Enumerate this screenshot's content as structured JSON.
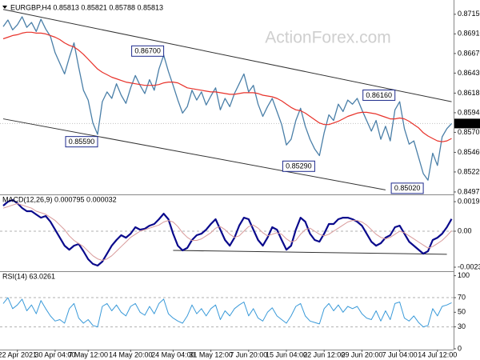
{
  "chart_data": {
    "type": "stock",
    "watermark": "ActionForex.com",
    "categories": [
      null,
      null,
      null,
      "22 Apr 2021",
      null,
      null,
      null,
      null,
      null,
      null,
      null,
      "30 Apr 04:00",
      null,
      null,
      null,
      null,
      null,
      null,
      "7 May 12:00",
      null,
      null,
      null,
      null,
      null,
      null,
      null,
      null,
      "14 May 20:00",
      null,
      null,
      null,
      null,
      null,
      null,
      null,
      null,
      "24 May 04:00",
      null,
      null,
      null,
      null,
      null,
      null,
      null,
      "31 May 12:00",
      null,
      null,
      null,
      null,
      null,
      null,
      null,
      "7 Jun 20:00",
      null,
      null,
      null,
      null,
      null,
      null,
      null,
      "15 Jun 04:00",
      null,
      null,
      null,
      null,
      null,
      null,
      null,
      "22 Jun 12:00",
      null,
      null,
      null,
      null,
      null,
      null,
      null,
      "29 Jun 20:00",
      null,
      null,
      null,
      null,
      null,
      null,
      null,
      "7 Jul 04:00",
      null,
      null,
      null,
      null,
      null,
      null,
      null,
      "14 Jul 12:00",
      null,
      null,
      null
    ],
    "panels": [
      {
        "type": "line",
        "title": "EURGBP,H4 0.85813 0.85821 0.85788 0.85813",
        "ylim": [
          0.84955,
          0.87276
        ],
        "yticks": [
          {
            "value": 0.8715,
            "label": "0.87150"
          },
          {
            "value": 0.8691,
            "label": "0.86910"
          },
          {
            "value": 0.8667,
            "label": "0.86670"
          },
          {
            "value": 0.8643,
            "label": "0.86430"
          },
          0.86185,
          0.85945,
          0.85705,
          {
            "value": 0.8546,
            "label": "0.85460"
          },
          {
            "value": 0.8522,
            "label": "0.85220"
          },
          0.84975
        ],
        "last_price": 0.85813,
        "series": [
          {
            "color": "#4a7fa8",
            "width": 1.3,
            "values": [
              0.87,
              0.8708,
              0.8696,
              0.8702,
              0.8712,
              0.8699,
              0.8705,
              0.8694,
              0.8709,
              0.8697,
              0.8688,
              0.8668,
              0.8655,
              0.8642,
              0.8662,
              0.868,
              0.865,
              0.8622,
              0.861,
              0.8582,
              0.8568,
              0.8608,
              0.862,
              0.8612,
              0.863,
              0.8616,
              0.8606,
              0.8625,
              0.864,
              0.8628,
              0.8618,
              0.8635,
              0.8622,
              0.8648,
              0.8665,
              0.8645,
              0.8628,
              0.861,
              0.8594,
              0.8602,
              0.8622,
              0.861,
              0.862,
              0.8604,
              0.8615,
              0.8625,
              0.8598,
              0.8612,
              0.8602,
              0.8618,
              0.863,
              0.8642,
              0.862,
              0.8628,
              0.8605,
              0.859,
              0.8602,
              0.8612,
              0.8596,
              0.858,
              0.8555,
              0.8562,
              0.8585,
              0.86,
              0.8578,
              0.8562,
              0.855,
              0.8542,
              0.857,
              0.8592,
              0.8585,
              0.8605,
              0.8596,
              0.861,
              0.8605,
              0.8612,
              0.8598,
              0.8585,
              0.8572,
              0.8585,
              0.8562,
              0.8578,
              0.856,
              0.8598,
              0.8608,
              0.8575,
              0.8556,
              0.856,
              0.854,
              0.852,
              0.8512,
              0.8545,
              0.853,
              0.8565,
              0.8575,
              0.85813
            ]
          },
          {
            "color": "#e8322a",
            "width": 1.2,
            "values": [
              0.8685,
              0.8687,
              0.8689,
              0.869,
              0.8692,
              0.8693,
              0.8693,
              0.8692,
              0.8692,
              0.8691,
              0.8689,
              0.8687,
              0.8684,
              0.868,
              0.8677,
              0.8675,
              0.8671,
              0.8666,
              0.866,
              0.8654,
              0.8648,
              0.8644,
              0.8641,
              0.8638,
              0.8636,
              0.8634,
              0.8632,
              0.8631,
              0.863,
              0.8629,
              0.8628,
              0.8628,
              0.8628,
              0.8629,
              0.8631,
              0.8632,
              0.8632,
              0.8631,
              0.8628,
              0.8625,
              0.8624,
              0.8623,
              0.8622,
              0.8621,
              0.862,
              0.862,
              0.8619,
              0.8618,
              0.8617,
              0.8617,
              0.8618,
              0.8619,
              0.8619,
              0.8619,
              0.8618,
              0.8616,
              0.8615,
              0.8614,
              0.8612,
              0.8609,
              0.8605,
              0.8601,
              0.8598,
              0.8597,
              0.8594,
              0.859,
              0.8586,
              0.8582,
              0.858,
              0.858,
              0.8582,
              0.8584,
              0.8587,
              0.859,
              0.8592,
              0.8594,
              0.8595,
              0.8595,
              0.8594,
              0.8593,
              0.8591,
              0.8589,
              0.8587,
              0.8587,
              0.8588,
              0.8587,
              0.8584,
              0.858,
              0.8576,
              0.857,
              0.8566,
              0.8563,
              0.856,
              0.8559,
              0.856,
              0.8563
            ]
          }
        ],
        "trendlines": [
          {
            "color": "#333333",
            "x": [
              0,
              95
            ],
            "y": [
              0.8721,
              0.8608
            ]
          },
          {
            "color": "#333333",
            "x": [
              0,
              81
            ],
            "y": [
              0.8587,
              0.85
            ]
          }
        ],
        "annotations": [
          {
            "x": 34,
            "value": 0.867,
            "label": "0.86700"
          },
          {
            "x": 20,
            "value": 0.8559,
            "label": "0.85590"
          },
          {
            "x": 66,
            "value": 0.8529,
            "label": "0.85290"
          },
          {
            "x": 83,
            "value": 0.8616,
            "label": "0.86160"
          },
          {
            "x": 89,
            "value": 0.8502,
            "label": "0.85020"
          }
        ]
      },
      {
        "type": "line",
        "title": "MACD(12,26,9) 0.000795 0.000032",
        "ylim": [
          -0.00255,
          0.00229
        ],
        "yticks": [
          0.001922,
          {
            "value": 0,
            "label": "0.00"
          },
          -0.002342
        ],
        "levels": [
          0
        ],
        "series": [
          {
            "color": "#0a0a8c",
            "width": 2.2,
            "values": [
              0.00166,
              0.00192,
              0.00203,
              0.00182,
              0.00151,
              0.0013,
              0.0013,
              0.00109,
              0.00088,
              0.00099,
              0.00062,
              0.0001,
              -0.00042,
              -0.00094,
              -0.0012,
              -0.00094,
              -0.00083,
              -0.0013,
              -0.00182,
              -0.00213,
              -0.00224,
              -0.00198,
              -0.00146,
              -0.00094,
              -0.00057,
              -0.00026,
              -0.00042,
              -0.00016,
              0.00026,
              0.0001,
              0.00016,
              0.00036,
              0.00047,
              0.00078,
              0.00114,
              0.00078,
              -0.00016,
              -0.00094,
              -0.00125,
              -0.00109,
              -0.00057,
              -0.00026,
              -0.00016,
              0.0001,
              0.00047,
              0.00078,
              0.0001,
              -0.00057,
              -0.00094,
              -0.00042,
              0.00036,
              0.00088,
              0.00078,
              0.0001,
              -0.00057,
              -0.00094,
              -0.00042,
              0.00026,
              0.0001,
              -0.00057,
              -0.0012,
              -0.00094,
              0.0001,
              0.00088,
              0.00062,
              -0.00016,
              -0.00057,
              -0.00068,
              -0.00016,
              0.00047,
              0.00047,
              0.00078,
              0.00088,
              0.00088,
              0.00078,
              0.00062,
              0.00036,
              -0.00016,
              -0.00068,
              -0.00094,
              -0.00078,
              -0.00042,
              -0.00026,
              0.00026,
              0.00036,
              -0.00016,
              -0.00068,
              -0.00094,
              -0.0012,
              -0.00146,
              -0.0013,
              -0.00057,
              -0.00042,
              -0.00016,
              0.00026,
              0.000795
            ]
          },
          {
            "color": "#d89a9a",
            "width": 1,
            "values": [
              0.0015,
              0.0016,
              0.0017,
              0.0018,
              0.0017,
              0.0016,
              0.0015,
              0.0013,
              0.0012,
              0.0011,
              0.0009,
              0.0007,
              0.0004,
              0.0001,
              -0.0003,
              -0.0006,
              -0.0008,
              -0.001,
              -0.0013,
              -0.0016,
              -0.0018,
              -0.0019,
              -0.0018,
              -0.0016,
              -0.0013,
              -0.001,
              -0.0007,
              -0.0004,
              -0.0002,
              0,
              0.0001,
              0.0002,
              0.0003,
              0.0004,
              0.0006,
              0.0007,
              0.0006,
              0.0003,
              -0.0001,
              -0.0004,
              -0.0006,
              -0.0006,
              -0.0005,
              -0.0003,
              -0.0001,
              0.0002,
              0.0003,
              0.0001,
              -0.0002,
              -0.0004,
              -0.0003,
              0,
              0.0003,
              0.0004,
              0.0002,
              -0.0001,
              -0.0003,
              -0.0002,
              -0.0001,
              -0.0002,
              -0.0005,
              -0.0007,
              -0.0006,
              -0.0002,
              0.0001,
              0.0002,
              0,
              -0.0002,
              -0.0003,
              -0.0002,
              0,
              0.0002,
              0.0004,
              0.0006,
              0.0007,
              0.0007,
              0.0006,
              0.0004,
              0.0001,
              -0.0002,
              -0.0004,
              -0.0005,
              -0.0004,
              -0.0002,
              0,
              -0.0001,
              -0.0003,
              -0.0005,
              -0.0007,
              -0.0009,
              -0.0011,
              -0.001,
              -0.0008,
              -0.0006,
              -0.0003,
              3.2e-05
            ]
          }
        ],
        "trendlines": [
          {
            "color": "#333333",
            "x": [
              36,
              94
            ],
            "y": [
              -0.00125,
              -0.0015
            ]
          }
        ]
      },
      {
        "type": "line",
        "title": "RSI(14) 63.0261",
        "ylim": [
          0,
          104
        ],
        "yticks": [
          100,
          70,
          50,
          30,
          0
        ],
        "levels": [
          70,
          30
        ],
        "series": [
          {
            "color": "#3a9ad9",
            "width": 1,
            "values": [
              62,
              70,
              55,
              60,
              68,
              52,
              60,
              48,
              66,
              55,
              45,
              38,
              40,
              35,
              55,
              62,
              42,
              35,
              40,
              32,
              30,
              58,
              62,
              52,
              60,
              50,
              45,
              58,
              62,
              50,
              46,
              58,
              48,
              62,
              68,
              48,
              42,
              38,
              35,
              45,
              60,
              48,
              55,
              45,
              55,
              60,
              40,
              52,
              45,
              55,
              60,
              64,
              45,
              55,
              42,
              38,
              50,
              56,
              45,
              40,
              35,
              45,
              58,
              62,
              45,
              38,
              36,
              34,
              55,
              62,
              52,
              60,
              50,
              58,
              55,
              58,
              48,
              42,
              40,
              52,
              38,
              52,
              40,
              62,
              64,
              42,
              38,
              45,
              36,
              30,
              32,
              55,
              45,
              58,
              60,
              63.0261
            ]
          }
        ]
      }
    ]
  }
}
